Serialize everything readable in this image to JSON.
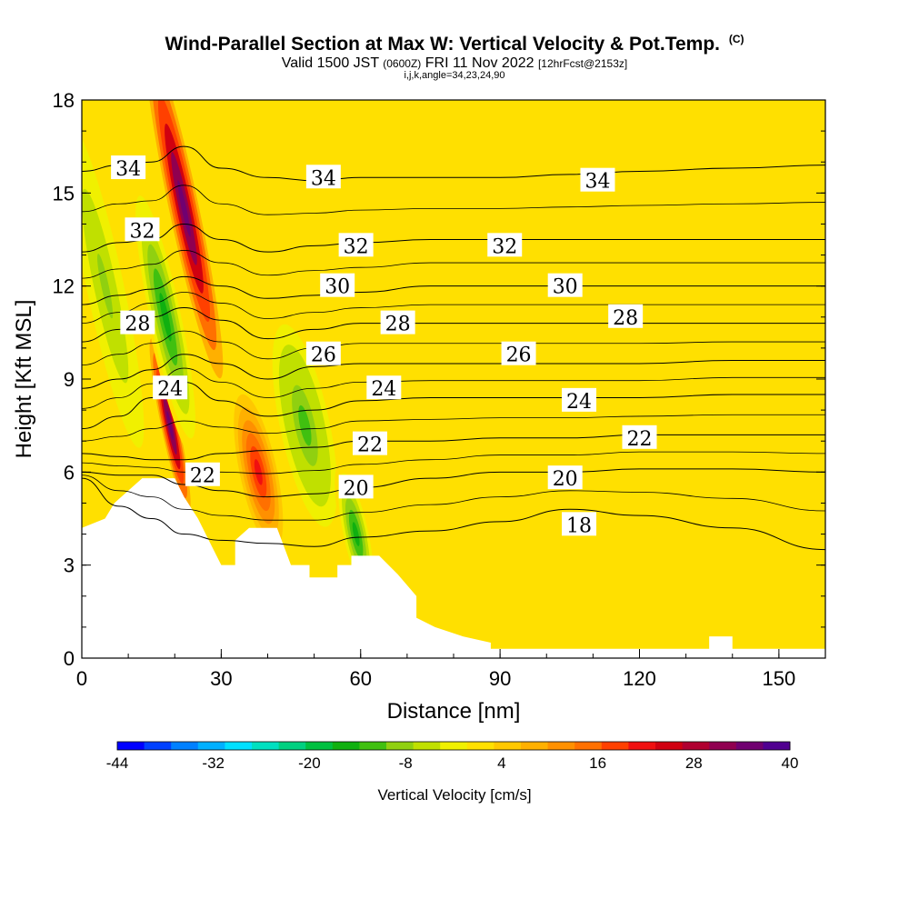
{
  "header": {
    "title": "Wind-Parallel Section at Max W: Vertical Velocity & Pot.Temp.",
    "title_suffix": "(C)",
    "valid_prefix": "Valid 1500 JST",
    "valid_utc": "(0600Z)",
    "valid_date": "FRI 11 Nov 2022",
    "forecast": "[12hrFcst@2153z]",
    "indices": "i,j,k,angle=34,23,24,90"
  },
  "chart_data": {
    "type": "heatmap",
    "xlabel": "Distance [nm]",
    "ylabel": "Height [Kft MSL]",
    "xlim": [
      0,
      160
    ],
    "ylim": [
      0,
      18
    ],
    "xticks": [
      0,
      30,
      60,
      90,
      120,
      150
    ],
    "yticks": [
      0,
      3,
      6,
      9,
      12,
      15,
      18
    ],
    "colorbar": {
      "label": "Vertical Velocity [cm/s]",
      "tick_labels": [
        "-44",
        "-32",
        "-20",
        "-8",
        "4",
        "16",
        "28",
        "40"
      ],
      "tick_values": [
        -44,
        -32,
        -20,
        -8,
        4,
        16,
        28,
        40
      ],
      "range": [
        -44,
        40
      ],
      "colors": [
        "#0000ff",
        "#0040ff",
        "#0080ff",
        "#00b0ff",
        "#00e0ff",
        "#00e0c0",
        "#00d080",
        "#00c040",
        "#10b010",
        "#40c010",
        "#90d010",
        "#c0e000",
        "#f0f000",
        "#ffe000",
        "#ffc800",
        "#ffb000",
        "#ff9000",
        "#ff7000",
        "#ff4000",
        "#f01010",
        "#d00010",
        "#b00030",
        "#900050",
        "#700070",
        "#500090"
      ]
    },
    "terrain_nm_kft": [
      [
        0,
        4.2
      ],
      [
        5,
        4.5
      ],
      [
        7,
        5
      ],
      [
        10,
        5.4
      ],
      [
        13,
        5.8
      ],
      [
        20,
        5.8
      ],
      [
        22,
        5.2
      ],
      [
        25,
        4.5
      ],
      [
        28,
        3.6
      ],
      [
        30,
        3
      ],
      [
        33,
        3
      ],
      [
        33,
        3.8
      ],
      [
        36,
        4.2
      ],
      [
        42,
        4.2
      ],
      [
        45,
        3
      ],
      [
        49,
        3
      ],
      [
        49,
        2.6
      ],
      [
        55,
        2.6
      ],
      [
        55,
        3
      ],
      [
        58,
        3
      ],
      [
        58,
        3.3
      ],
      [
        64,
        3.3
      ],
      [
        68,
        2.7
      ],
      [
        72,
        2
      ],
      [
        72,
        1.3
      ],
      [
        76,
        1
      ],
      [
        82,
        0.7
      ],
      [
        88,
        0.5
      ],
      [
        88,
        0.3
      ],
      [
        135,
        0.3
      ],
      [
        135,
        0.7
      ],
      [
        140,
        0.7
      ],
      [
        140,
        0.3
      ],
      [
        160,
        0.3
      ]
    ],
    "isentropes": [
      {
        "label": "18",
        "y": [
          5.8,
          4.9,
          4.5,
          4.0,
          3.8,
          3.7,
          3.6,
          3.9,
          4.1,
          4.4,
          4.8,
          4.6,
          4.2,
          3.5
        ]
      },
      {
        "label": "20",
        "y": [
          6.0,
          5.9,
          5.9,
          5.6,
          5.4,
          5.2,
          5.3,
          5.5,
          5.8,
          6.0,
          6.0,
          6.1,
          6.1,
          6.0
        ]
      },
      {
        "label": "22",
        "y": [
          6.6,
          6.5,
          6.4,
          6.4,
          6.6,
          6.7,
          6.8,
          7.0,
          7.0,
          7.1,
          7.1,
          7.2,
          7.2,
          7.2
        ]
      },
      {
        "label": "24",
        "y": [
          7.4,
          7.8,
          8.4,
          8.9,
          8.3,
          7.8,
          8.0,
          8.3,
          8.4,
          8.4,
          8.4,
          8.4,
          8.5,
          8.5
        ]
      },
      {
        "label": "26",
        "y": [
          8.7,
          9.0,
          9.3,
          9.8,
          9.5,
          9.0,
          9.4,
          9.5,
          9.5,
          9.5,
          9.5,
          9.5,
          9.6,
          9.6
        ]
      },
      {
        "label": "28",
        "y": [
          10.2,
          10.6,
          11.0,
          11.3,
          10.9,
          10.3,
          10.6,
          10.8,
          10.8,
          10.8,
          10.8,
          10.8,
          10.8,
          10.8
        ]
      },
      {
        "label": "30",
        "y": [
          11.4,
          11.7,
          11.9,
          12.3,
          12.0,
          11.6,
          11.7,
          11.8,
          12.0,
          12.0,
          12.0,
          12.0,
          12.0,
          12.0
        ]
      },
      {
        "label": "32",
        "y": [
          13.1,
          13.4,
          13.5,
          14.0,
          13.5,
          13.1,
          13.3,
          13.4,
          13.5,
          13.5,
          13.5,
          13.5,
          13.5,
          13.5
        ]
      },
      {
        "label": "34",
        "y": [
          15.7,
          15.9,
          16.0,
          16.5,
          15.8,
          15.5,
          15.4,
          15.5,
          15.5,
          15.5,
          15.6,
          15.7,
          15.8,
          15.9
        ]
      }
    ],
    "isentrope_x": [
      0,
      8,
      15,
      22,
      30,
      40,
      50,
      60,
      75,
      90,
      105,
      120,
      140,
      160
    ],
    "contour_labels": [
      {
        "text": "34",
        "x": 10,
        "y": 15.8
      },
      {
        "text": "34",
        "x": 52,
        "y": 15.5
      },
      {
        "text": "34",
        "x": 111,
        "y": 15.4
      },
      {
        "text": "32",
        "x": 13,
        "y": 13.8
      },
      {
        "text": "32",
        "x": 59,
        "y": 13.3
      },
      {
        "text": "32",
        "x": 91,
        "y": 13.3
      },
      {
        "text": "30",
        "x": 55,
        "y": 12.0
      },
      {
        "text": "30",
        "x": 104,
        "y": 12.0
      },
      {
        "text": "28",
        "x": 12,
        "y": 10.8
      },
      {
        "text": "28",
        "x": 68,
        "y": 10.8
      },
      {
        "text": "28",
        "x": 117,
        "y": 11.0
      },
      {
        "text": "26",
        "x": 52,
        "y": 9.8
      },
      {
        "text": "26",
        "x": 94,
        "y": 9.8
      },
      {
        "text": "24",
        "x": 19,
        "y": 8.7
      },
      {
        "text": "24",
        "x": 65,
        "y": 8.7
      },
      {
        "text": "24",
        "x": 107,
        "y": 8.3
      },
      {
        "text": "22",
        "x": 26,
        "y": 5.9
      },
      {
        "text": "22",
        "x": 62,
        "y": 6.9
      },
      {
        "text": "22",
        "x": 120,
        "y": 7.1
      },
      {
        "text": "20",
        "x": 59,
        "y": 5.5
      },
      {
        "text": "20",
        "x": 104,
        "y": 5.8
      },
      {
        "text": "18",
        "x": 107,
        "y": 4.3
      }
    ],
    "velocity_features": [
      {
        "kind": "updraft",
        "center": [
          22,
          14.5
        ],
        "spread": [
          2,
          3.5
        ],
        "value": 36
      },
      {
        "kind": "updraft",
        "center": [
          19,
          7.5
        ],
        "spread": [
          1.2,
          1.8
        ],
        "value": 36
      },
      {
        "kind": "updraft",
        "center": [
          38,
          6.0
        ],
        "spread": [
          2.5,
          1.6
        ],
        "value": 22
      },
      {
        "kind": "downdraft",
        "center": [
          18,
          11.0
        ],
        "spread": [
          2.5,
          3.0
        ],
        "value": -16
      },
      {
        "kind": "downdraft",
        "center": [
          48,
          7.5
        ],
        "spread": [
          4,
          2.5
        ],
        "value": -12
      },
      {
        "kind": "downdraft",
        "center": [
          59,
          4.0
        ],
        "spread": [
          2,
          1.5
        ],
        "value": -16
      },
      {
        "kind": "downdraft",
        "center": [
          5,
          12.0
        ],
        "spread": [
          3,
          4
        ],
        "value": -8
      }
    ]
  }
}
